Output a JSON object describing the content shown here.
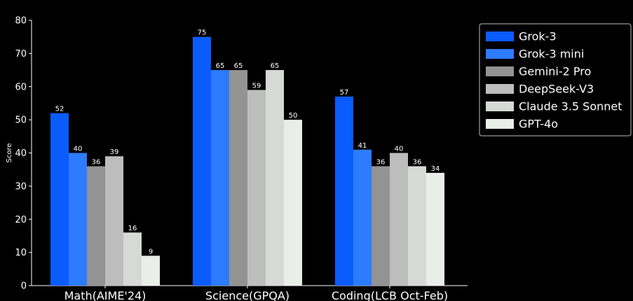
{
  "chart_data": {
    "type": "bar",
    "categories": [
      "Math(AIME'24)",
      "Science(GPQA)",
      "Coding(LCB Oct-Feb)"
    ],
    "series": [
      {
        "name": "Grok-3",
        "values": [
          52,
          75,
          57
        ],
        "color": "#0a5cff"
      },
      {
        "name": "Grok-3 mini",
        "values": [
          40,
          65,
          41
        ],
        "color": "#2d7bff"
      },
      {
        "name": "Gemini-2 Pro",
        "values": [
          36,
          65,
          36
        ],
        "color": "#939393"
      },
      {
        "name": "DeepSeek-V3",
        "values": [
          39,
          59,
          40
        ],
        "color": "#bdbdbd"
      },
      {
        "name": "Claude 3.5 Sonnet",
        "values": [
          16,
          65,
          36
        ],
        "color": "#d6d9d6"
      },
      {
        "name": "GPT-4o",
        "values": [
          9,
          50,
          34
        ],
        "color": "#eaeee9"
      }
    ],
    "ylabel": "Score",
    "ylim": [
      0,
      80
    ],
    "yticks": [
      0,
      10,
      20,
      30,
      40,
      50,
      60,
      70,
      80
    ],
    "grid": false,
    "legend_position": "top-right"
  }
}
